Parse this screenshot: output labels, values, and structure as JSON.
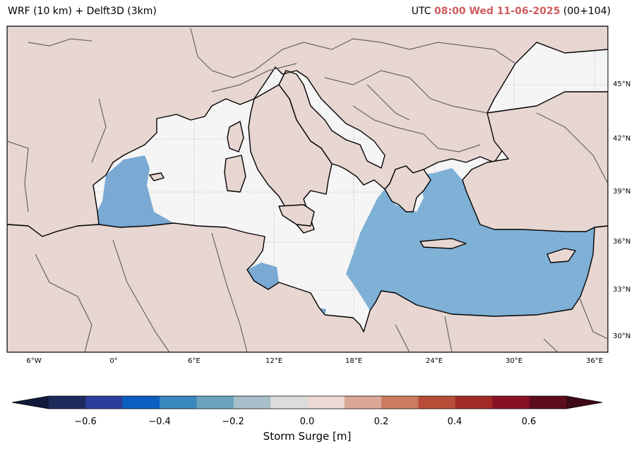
{
  "title": {
    "left": "WRF (10 km) + Delft3D (3km)",
    "utc_prefix": "UTC",
    "datetime": "08:00 Wed 11-06-2025",
    "run": "(00+104)"
  },
  "lat_labels": [
    "45°N",
    "42°N",
    "39°N",
    "36°N",
    "33°N",
    "30°N"
  ],
  "lon_labels": [
    "6°W",
    "0°",
    "6°E",
    "12°E",
    "18°E",
    "24°E",
    "30°E",
    "36°E"
  ],
  "colorbar": {
    "label": "Storm Surge [m]",
    "ticks": [
      "−0.6",
      "−0.4",
      "−0.2",
      "0.0",
      "0.2",
      "0.4",
      "0.6"
    ],
    "range": [
      -0.7,
      0.7
    ],
    "step": 0.1,
    "colors": [
      "#1f2a5c",
      "#2c3f9e",
      "#0b5fbf",
      "#3a88c0",
      "#6aa3bd",
      "#a6bfc9",
      "#dcdcdc",
      "#ecd9d4",
      "#dba898",
      "#cc7a60",
      "#b84d37",
      "#a32a25",
      "#8a1228",
      "#5e0d1e"
    ],
    "extend_low": "#111a3a",
    "extend_high": "#3e0a16"
  },
  "colors": {
    "ocean_background": "#f5f5f5",
    "land_surge_fill": "#e8d6d2",
    "east_med_surge": "#7fb0d6",
    "west_med_surge": "#7aa9d4",
    "coastline": "#000000",
    "borders": "#666666"
  }
}
